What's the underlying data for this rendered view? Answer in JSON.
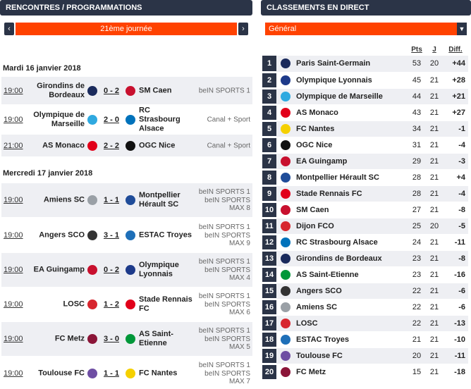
{
  "left": {
    "title": "RENCONTRES / PROGRAMMATIONS",
    "prev_arrow": "‹",
    "next_arrow": "›",
    "matchday": "21ème journée",
    "days": [
      {
        "label": "Mardi 16 janvier 2018",
        "matches": [
          {
            "time": "19:00",
            "home": "Girondins de Bordeaux",
            "score": "0 - 2",
            "away": "SM Caen",
            "tv": "beIN SPORTS 1",
            "home_color": "#1a2a5c",
            "away_color": "#c8102e"
          },
          {
            "time": "19:00",
            "home": "Olympique de Marseille",
            "score": "2 - 0",
            "away": "RC Strasbourg Alsace",
            "tv": "Canal + Sport",
            "home_color": "#2fa9e0",
            "away_color": "#0072bb"
          },
          {
            "time": "21:00",
            "home": "AS Monaco",
            "score": "2 - 2",
            "away": "OGC Nice",
            "tv": "Canal + Sport",
            "home_color": "#e2001a",
            "away_color": "#111111"
          }
        ]
      },
      {
        "label": "Mercredi 17 janvier 2018",
        "matches": [
          {
            "time": "19:00",
            "home": "Amiens SC",
            "score": "1 - 1",
            "away": "Montpellier Hérault SC",
            "tv": "beIN SPORTS 1 beIN SPORTS MAX 8",
            "home_color": "#9aa0a6",
            "away_color": "#1f4c99"
          },
          {
            "time": "19:00",
            "home": "Angers SCO",
            "score": "3 - 1",
            "away": "ESTAC Troyes",
            "tv": "beIN SPORTS 1 beIN SPORTS MAX 9",
            "home_color": "#333333",
            "away_color": "#1e6fb8"
          },
          {
            "time": "19:00",
            "home": "EA Guingamp",
            "score": "0 - 2",
            "away": "Olympique Lyonnais",
            "tv": "beIN SPORTS 1 beIN SPORTS MAX 4",
            "home_color": "#c8102e",
            "away_color": "#1d3a8a"
          },
          {
            "time": "19:00",
            "home": "LOSC",
            "score": "1 - 2",
            "away": "Stade Rennais FC",
            "tv": "beIN SPORTS 1 beIN SPORTS MAX 6",
            "home_color": "#d7262e",
            "away_color": "#e1001a"
          },
          {
            "time": "19:00",
            "home": "FC Metz",
            "score": "3 - 0",
            "away": "AS Saint-Etienne",
            "tv": "beIN SPORTS 1 beIN SPORTS MAX 5",
            "home_color": "#8b1538",
            "away_color": "#009739"
          },
          {
            "time": "19:00",
            "home": "Toulouse FC",
            "score": "1 - 1",
            "away": "FC Nantes",
            "tv": "beIN SPORTS 1 beIN SPORTS MAX 7",
            "home_color": "#6e4ea3",
            "away_color": "#f5d000"
          }
        ]
      }
    ]
  },
  "right": {
    "title": "CLASSEMENTS EN DIRECT",
    "selector": "Général",
    "dropdown_arrow": "▼",
    "cols": {
      "pts": "Pts",
      "j": "J",
      "diff": "Diff."
    },
    "rows": [
      {
        "pos": "1",
        "team": "Paris Saint-Germain",
        "pts": "53",
        "j": "20",
        "diff": "+44",
        "color": "#1a2a5c"
      },
      {
        "pos": "2",
        "team": "Olympique Lyonnais",
        "pts": "45",
        "j": "21",
        "diff": "+28",
        "color": "#1d3a8a"
      },
      {
        "pos": "3",
        "team": "Olympique de Marseille",
        "pts": "44",
        "j": "21",
        "diff": "+21",
        "color": "#2fa9e0"
      },
      {
        "pos": "4",
        "team": "AS Monaco",
        "pts": "43",
        "j": "21",
        "diff": "+27",
        "color": "#e2001a"
      },
      {
        "pos": "5",
        "team": "FC Nantes",
        "pts": "34",
        "j": "21",
        "diff": "-1",
        "color": "#f5d000"
      },
      {
        "pos": "6",
        "team": "OGC Nice",
        "pts": "31",
        "j": "21",
        "diff": "-4",
        "color": "#111111"
      },
      {
        "pos": "7",
        "team": "EA Guingamp",
        "pts": "29",
        "j": "21",
        "diff": "-3",
        "color": "#c8102e"
      },
      {
        "pos": "8",
        "team": "Montpellier Hérault SC",
        "pts": "28",
        "j": "21",
        "diff": "+4",
        "color": "#1f4c99"
      },
      {
        "pos": "9",
        "team": "Stade Rennais FC",
        "pts": "28",
        "j": "21",
        "diff": "-4",
        "color": "#e1001a"
      },
      {
        "pos": "10",
        "team": "SM Caen",
        "pts": "27",
        "j": "21",
        "diff": "-8",
        "color": "#c8102e"
      },
      {
        "pos": "11",
        "team": "Dijon FCO",
        "pts": "25",
        "j": "20",
        "diff": "-5",
        "color": "#d7262e"
      },
      {
        "pos": "12",
        "team": "RC Strasbourg Alsace",
        "pts": "24",
        "j": "21",
        "diff": "-11",
        "color": "#0072bb"
      },
      {
        "pos": "13",
        "team": "Girondins de Bordeaux",
        "pts": "23",
        "j": "21",
        "diff": "-8",
        "color": "#1a2a5c"
      },
      {
        "pos": "14",
        "team": "AS Saint-Etienne",
        "pts": "23",
        "j": "21",
        "diff": "-16",
        "color": "#009739"
      },
      {
        "pos": "15",
        "team": "Angers SCO",
        "pts": "22",
        "j": "21",
        "diff": "-6",
        "color": "#333333"
      },
      {
        "pos": "16",
        "team": "Amiens SC",
        "pts": "22",
        "j": "21",
        "diff": "-6",
        "color": "#9aa0a6"
      },
      {
        "pos": "17",
        "team": "LOSC",
        "pts": "22",
        "j": "21",
        "diff": "-13",
        "color": "#d7262e"
      },
      {
        "pos": "18",
        "team": "ESTAC Troyes",
        "pts": "21",
        "j": "21",
        "diff": "-10",
        "color": "#1e6fb8"
      },
      {
        "pos": "19",
        "team": "Toulouse FC",
        "pts": "20",
        "j": "21",
        "diff": "-11",
        "color": "#6e4ea3"
      },
      {
        "pos": "20",
        "team": "FC Metz",
        "pts": "15",
        "j": "21",
        "diff": "-18",
        "color": "#8b1538"
      }
    ]
  }
}
